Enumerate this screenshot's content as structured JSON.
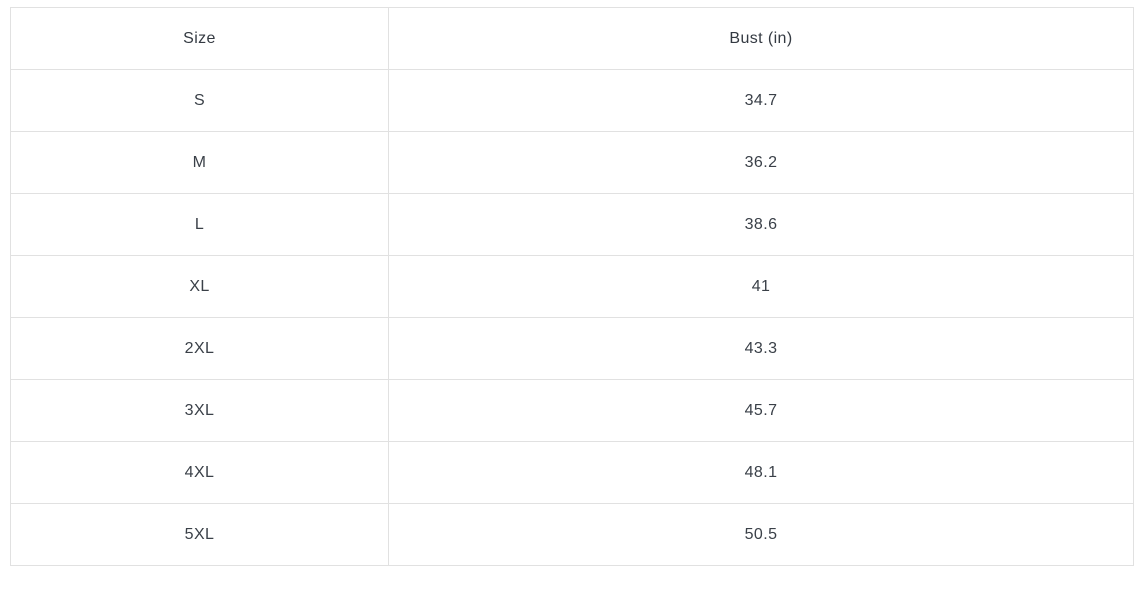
{
  "chart_data": {
    "type": "table",
    "columns": [
      "Size",
      "Bust (in)"
    ],
    "rows": [
      [
        "S",
        34.7
      ],
      [
        "M",
        36.2
      ],
      [
        "L",
        38.6
      ],
      [
        "XL",
        41
      ],
      [
        "2XL",
        43.3
      ],
      [
        "3XL",
        45.7
      ],
      [
        "4XL",
        48.1
      ],
      [
        "5XL",
        50.5
      ]
    ]
  },
  "colors": {
    "border": "#e1e1e1",
    "text": "#3a4048",
    "background": "#ffffff"
  }
}
